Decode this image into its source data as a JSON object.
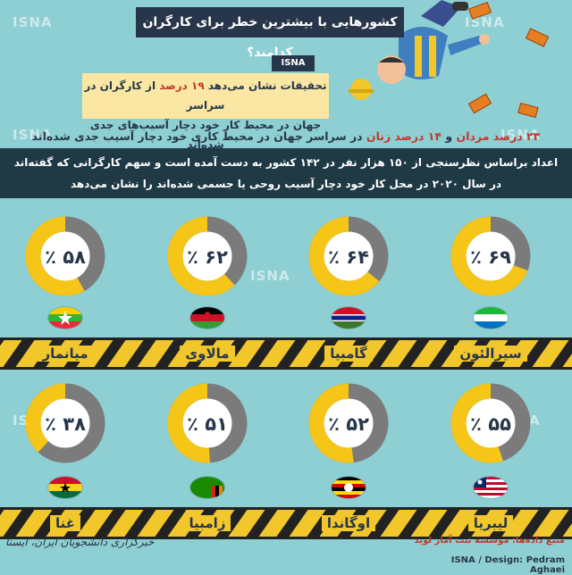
{
  "header": {
    "title": "کشورهایی با بیشترین خطر برای کارگران کدامند؟",
    "badge": "ISNA"
  },
  "watermarks": [
    "ISNA",
    "ISNA",
    "ISNA",
    "ISNA",
    "ISNA",
    "ISNA",
    "ISNA"
  ],
  "intro": {
    "line1_a": "تحقیقات نشان می‌دهد ",
    "line1_hl": "۱۹ درصد",
    "line1_b": " از کارگران در سراسر",
    "line2": "جهان در محیط کار خود دچار آسیب‌های جدی شده‌اند"
  },
  "gender_note": {
    "hl1": "۲۳ درصد مردان",
    "mid": " و ",
    "hl2": "۱۴ درصد زنان",
    "rest": " در سراسر جهان در محیط کاری خود دچار آسیب جدی شده‌اند"
  },
  "survey_note": {
    "line1": "اعداد براساس نظرسنجی از ۱۵۰ هزار نفر در ۱۴۲ کشور به دست آمده است و سهم کارگرانی که گفته‌اند",
    "line2": "در سال ۲۰۲۰ در محل کار خود دچار آسیب روحی یا جسمی شده‌اند را نشان می‌دهد"
  },
  "chart_data": {
    "type": "pie",
    "chart_kind": "donut",
    "unit": "percent",
    "colors": {
      "value": "#f5c518",
      "remainder": "#7b7b7b"
    },
    "countries": [
      {
        "name": "سیرالئون",
        "value": 69,
        "label": "۶۹ ٪",
        "flag": "sierra-leone"
      },
      {
        "name": "گامبیا",
        "value": 64,
        "label": "۶۴ ٪",
        "flag": "gambia"
      },
      {
        "name": "مالاوی",
        "value": 62,
        "label": "۶۲ ٪",
        "flag": "malawi"
      },
      {
        "name": "میانمار",
        "value": 58,
        "label": "۵۸ ٪",
        "flag": "myanmar"
      },
      {
        "name": "لیبریا",
        "value": 55,
        "label": "۵۵ ٪",
        "flag": "liberia"
      },
      {
        "name": "اوگاندا",
        "value": 52,
        "label": "۵۲ ٪",
        "flag": "uganda"
      },
      {
        "name": "زامبیا",
        "value": 51,
        "label": "۵۱ ٪",
        "flag": "zambia"
      },
      {
        "name": "غنا",
        "value": 38,
        "label": "۳۸ ٪",
        "flag": "ghana"
      }
    ]
  },
  "footer": {
    "source": "منبع داده‌ها: موسسه ثبت آمار لوید",
    "credit": "ISNA / Design: Pedram Aghaei",
    "signature": "خبرگزاری دانشجویان ایران، ایسنا"
  }
}
